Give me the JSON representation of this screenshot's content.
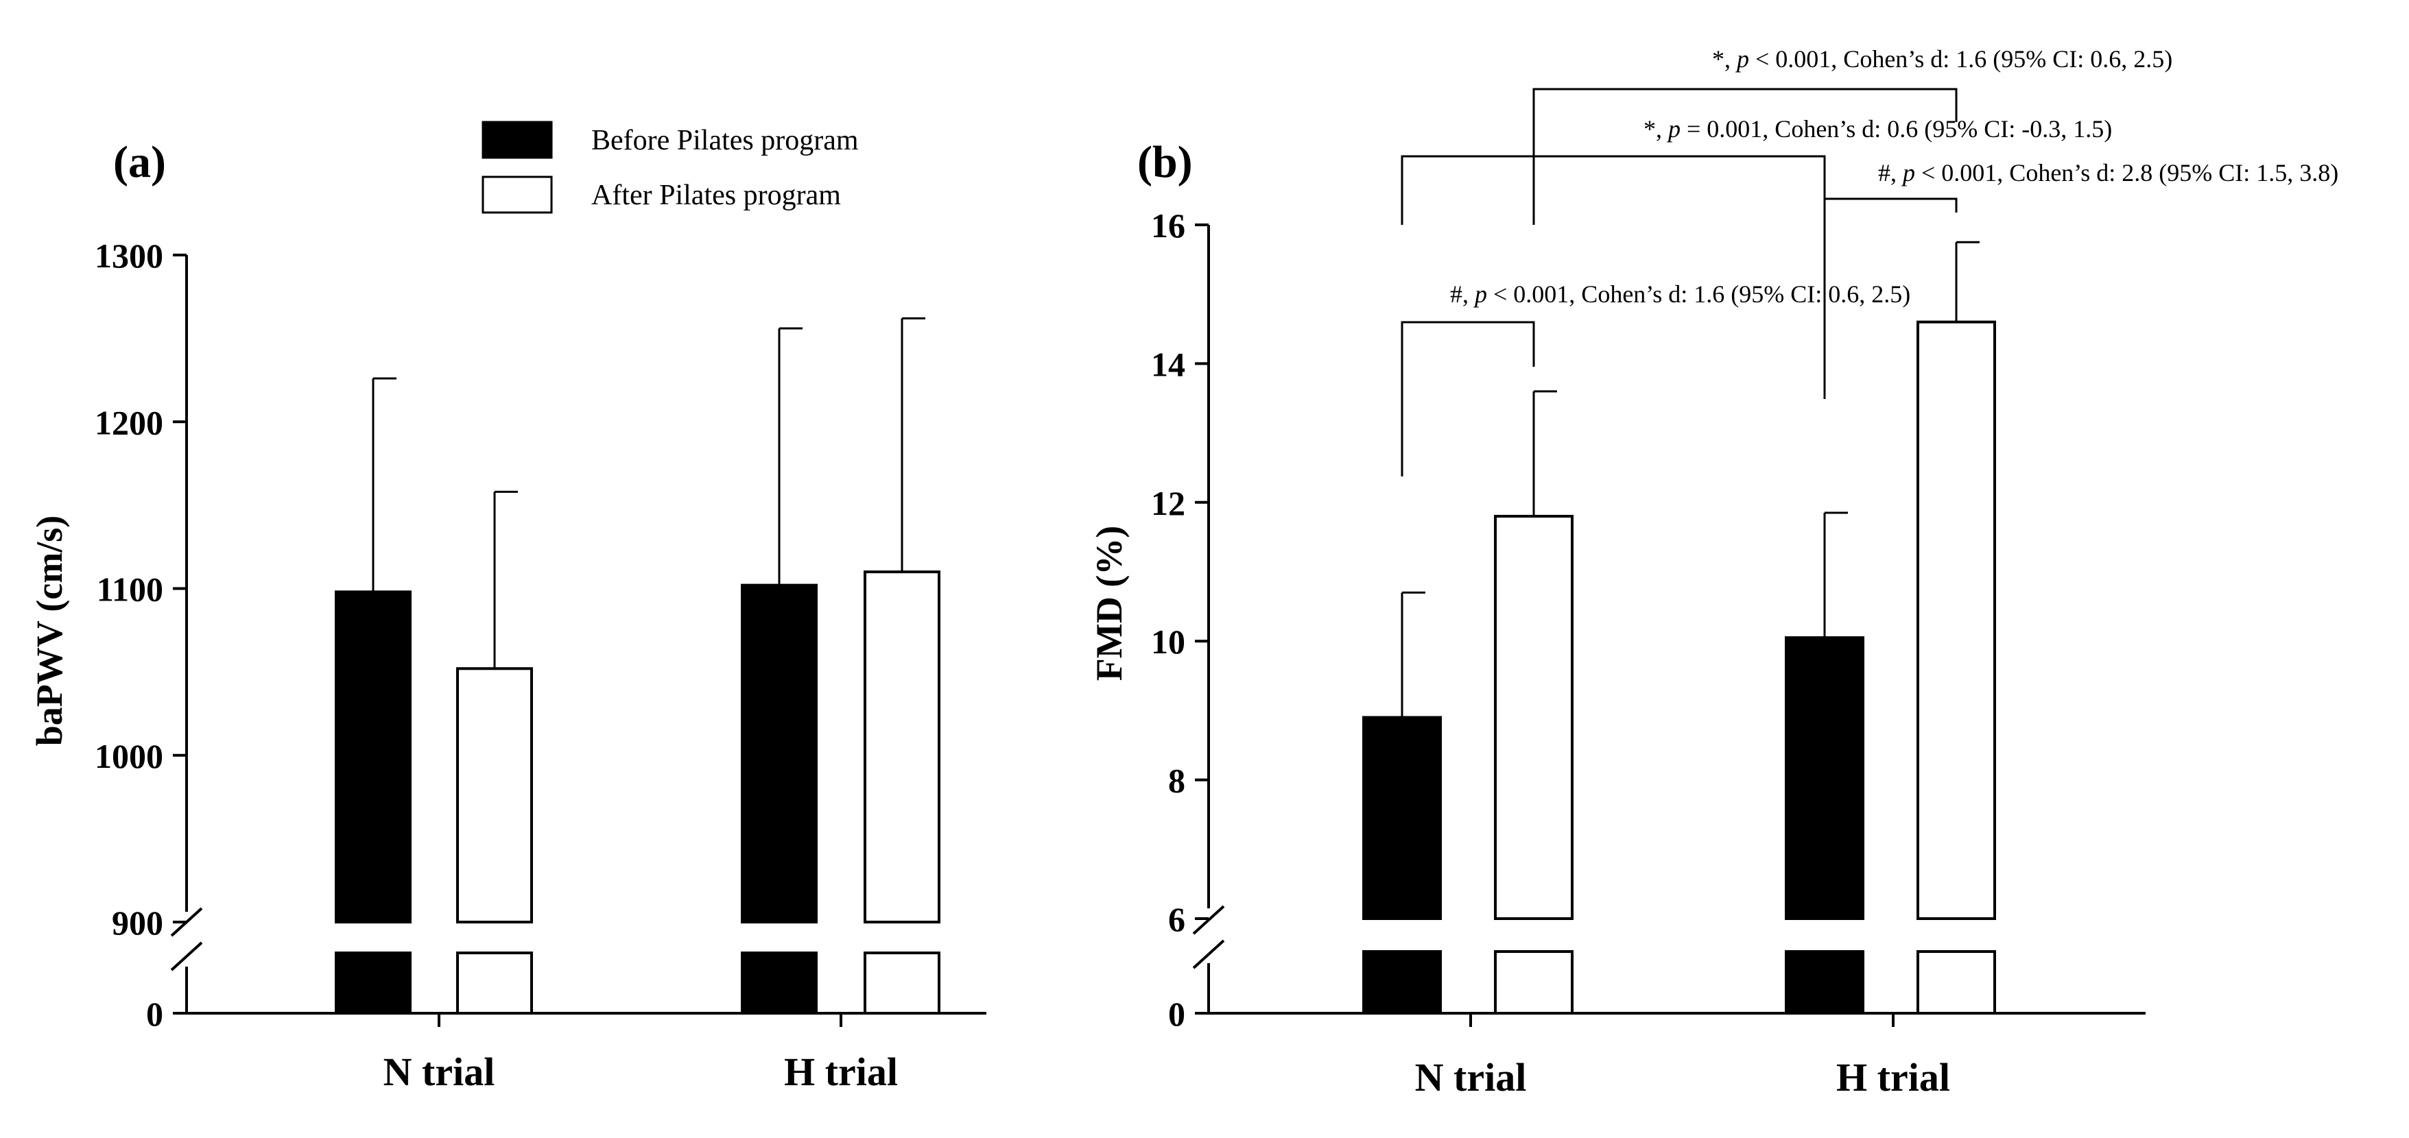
{
  "legend": {
    "before_label": "Before Pilates program",
    "after_label": "After Pilates program",
    "before_color": "#000000",
    "after_color": "#ffffff"
  },
  "chart_data": [
    {
      "panel": "(a)",
      "type": "bar",
      "ylabel": "baPWV (cm/s)",
      "categories": [
        "N trial",
        "H trial"
      ],
      "yticks": [
        "0",
        "900",
        "1000",
        "1100",
        "1200",
        "1300"
      ],
      "broken_axis": {
        "lower": [
          0,
          0
        ],
        "upper": [
          900,
          1300
        ]
      },
      "series": [
        {
          "name": "Before Pilates program",
          "values": [
            1098,
            1102
          ],
          "sd": [
            128,
            154
          ]
        },
        {
          "name": "After Pilates program",
          "values": [
            1052,
            1110
          ],
          "sd": [
            106,
            152
          ]
        }
      ],
      "annotations": []
    },
    {
      "panel": "(b)",
      "type": "bar",
      "ylabel": "FMD (%)",
      "categories": [
        "N trial",
        "H trial"
      ],
      "yticks": [
        "0",
        "6",
        "8",
        "10",
        "12",
        "14",
        "16"
      ],
      "broken_axis": {
        "lower": [
          0,
          0
        ],
        "upper": [
          6,
          16
        ]
      },
      "series": [
        {
          "name": "Before Pilates program",
          "values": [
            8.9,
            10.05
          ],
          "sd": [
            1.8,
            1.8
          ]
        },
        {
          "name": "After Pilates program",
          "values": [
            11.8,
            14.6
          ],
          "sd": [
            1.8,
            1.15
          ]
        }
      ],
      "annotations": [
        {
          "prefix": "#, ",
          "p_text": "p",
          "rest": " < 0.001, Cohen’s d: 1.6 (95% CI: 0.6, 2.5)"
        },
        {
          "prefix": "#, ",
          "p_text": "p",
          "rest": " < 0.001, Cohen’s d: 2.8 (95% CI: 1.5, 3.8)"
        },
        {
          "prefix": "*, ",
          "p_text": "p",
          "rest": " = 0.001, Cohen’s d: 0.6 (95% CI: -0.3, 1.5)"
        },
        {
          "prefix": "*, ",
          "p_text": "p",
          "rest": " < 0.001, Cohen’s d: 1.6 (95% CI: 0.6, 2.5)"
        }
      ]
    }
  ]
}
